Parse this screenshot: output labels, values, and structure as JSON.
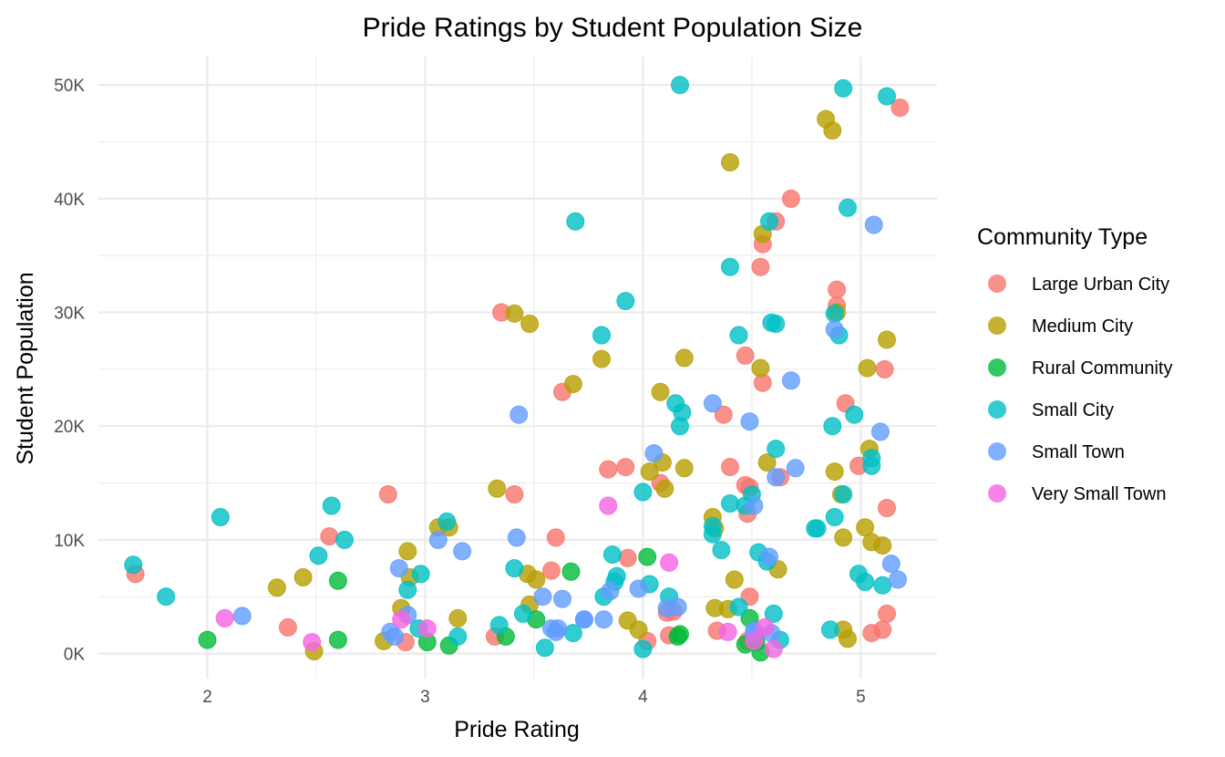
{
  "chart_data": {
    "type": "scatter",
    "title": "Pride Ratings by Student Population Size",
    "xlabel": "Pride Rating",
    "ylabel": "Student Population",
    "xlim": [
      1.5,
      5.35
    ],
    "ylim": [
      -2200,
      52500
    ],
    "x_ticks": [
      2,
      3,
      4,
      5
    ],
    "x_tick_labels": [
      "2",
      "3",
      "4",
      "5"
    ],
    "y_ticks": [
      0,
      10000,
      20000,
      30000,
      40000,
      50000
    ],
    "y_tick_labels": [
      "0K",
      "10K",
      "20K",
      "30K",
      "40K",
      "50K"
    ],
    "grid": true,
    "legend": {
      "title": "Community Type",
      "position": "right"
    },
    "series": [
      {
        "name": "Large Urban City",
        "color": "#F8766D",
        "points": [
          [
            1.67,
            7000
          ],
          [
            2.56,
            10300
          ],
          [
            2.37,
            2300
          ],
          [
            2.83,
            14000
          ],
          [
            2.91,
            1000
          ],
          [
            3.35,
            30000
          ],
          [
            3.41,
            14000
          ],
          [
            3.6,
            10200
          ],
          [
            3.63,
            23000
          ],
          [
            3.84,
            16200
          ],
          [
            3.92,
            16400
          ],
          [
            3.93,
            8400
          ],
          [
            4.08,
            15000
          ],
          [
            4.12,
            1600
          ],
          [
            4.02,
            1100
          ],
          [
            4.37,
            21000
          ],
          [
            4.4,
            16400
          ],
          [
            4.55,
            36000
          ],
          [
            4.54,
            34000
          ],
          [
            4.55,
            23800
          ],
          [
            4.47,
            26200
          ],
          [
            4.47,
            14800
          ],
          [
            4.49,
            14600
          ],
          [
            4.63,
            15500
          ],
          [
            4.68,
            40000
          ],
          [
            4.61,
            38000
          ],
          [
            4.89,
            32000
          ],
          [
            4.89,
            30600
          ],
          [
            4.93,
            22000
          ],
          [
            4.99,
            16500
          ],
          [
            5.11,
            25000
          ],
          [
            5.12,
            12800
          ],
          [
            5.12,
            3500
          ],
          [
            5.1,
            2100
          ],
          [
            5.05,
            1800
          ],
          [
            4.11,
            3600
          ],
          [
            4.14,
            3700
          ],
          [
            4.34,
            2000
          ],
          [
            5.18,
            48000
          ],
          [
            4.48,
            12300
          ],
          [
            4.49,
            5000
          ],
          [
            3.32,
            1500
          ],
          [
            3.58,
            7300
          ],
          [
            4.48,
            1100
          ]
        ]
      },
      {
        "name": "Medium City",
        "color": "#B79F00",
        "points": [
          [
            2.32,
            5800
          ],
          [
            2.44,
            6700
          ],
          [
            2.49,
            200
          ],
          [
            2.81,
            1100
          ],
          [
            2.89,
            4000
          ],
          [
            2.92,
            9000
          ],
          [
            2.93,
            6700
          ],
          [
            3.11,
            11100
          ],
          [
            3.15,
            3100
          ],
          [
            3.33,
            14500
          ],
          [
            3.41,
            29900
          ],
          [
            3.48,
            29000
          ],
          [
            3.48,
            4300
          ],
          [
            3.47,
            7000
          ],
          [
            3.51,
            6500
          ],
          [
            3.68,
            23700
          ],
          [
            3.81,
            25900
          ],
          [
            3.93,
            2900
          ],
          [
            3.98,
            2100
          ],
          [
            4.03,
            16000
          ],
          [
            4.09,
            16800
          ],
          [
            4.08,
            23000
          ],
          [
            4.1,
            14500
          ],
          [
            4.19,
            26000
          ],
          [
            4.19,
            16300
          ],
          [
            4.32,
            12000
          ],
          [
            4.33,
            11000
          ],
          [
            4.33,
            4000
          ],
          [
            4.39,
            3900
          ],
          [
            4.42,
            6500
          ],
          [
            4.4,
            43200
          ],
          [
            4.54,
            25100
          ],
          [
            4.55,
            36900
          ],
          [
            4.57,
            16800
          ],
          [
            4.62,
            7400
          ],
          [
            4.84,
            47000
          ],
          [
            4.87,
            46000
          ],
          [
            4.88,
            16000
          ],
          [
            4.89,
            30000
          ],
          [
            4.91,
            14000
          ],
          [
            4.92,
            10200
          ],
          [
            4.92,
            2100
          ],
          [
            4.94,
            1300
          ],
          [
            5.02,
            11100
          ],
          [
            5.03,
            25100
          ],
          [
            5.04,
            18000
          ],
          [
            5.05,
            9800
          ],
          [
            5.1,
            9500
          ],
          [
            5.12,
            27600
          ],
          [
            3.06,
            11100
          ]
        ]
      },
      {
        "name": "Rural Community",
        "color": "#00BA38",
        "points": [
          [
            2.0,
            1200
          ],
          [
            2.6,
            6400
          ],
          [
            2.6,
            1200
          ],
          [
            3.01,
            1000
          ],
          [
            3.11,
            700
          ],
          [
            3.37,
            1500
          ],
          [
            3.51,
            3000
          ],
          [
            3.67,
            7200
          ],
          [
            4.02,
            8500
          ],
          [
            4.17,
            1700
          ],
          [
            4.16,
            1500
          ],
          [
            4.47,
            800
          ],
          [
            4.49,
            3100
          ],
          [
            4.54,
            100
          ],
          [
            4.52,
            1000
          ]
        ]
      },
      {
        "name": "Small City",
        "color": "#00BFC4",
        "points": [
          [
            1.66,
            7800
          ],
          [
            1.81,
            5000
          ],
          [
            2.06,
            12000
          ],
          [
            2.57,
            13000
          ],
          [
            2.63,
            10000
          ],
          [
            2.51,
            8600
          ],
          [
            2.92,
            5600
          ],
          [
            2.97,
            2200
          ],
          [
            2.98,
            7000
          ],
          [
            3.1,
            11600
          ],
          [
            3.15,
            1500
          ],
          [
            3.34,
            2500
          ],
          [
            3.45,
            3500
          ],
          [
            3.41,
            7500
          ],
          [
            3.55,
            500
          ],
          [
            3.68,
            1800
          ],
          [
            3.69,
            38000
          ],
          [
            3.81,
            28000
          ],
          [
            3.82,
            5000
          ],
          [
            3.88,
            6800
          ],
          [
            3.92,
            31000
          ],
          [
            3.87,
            6300
          ],
          [
            4.0,
            14200
          ],
          [
            4.03,
            6100
          ],
          [
            4.0,
            400
          ],
          [
            4.12,
            5000
          ],
          [
            4.15,
            22000
          ],
          [
            4.17,
            20000
          ],
          [
            4.18,
            21200
          ],
          [
            4.32,
            10500
          ],
          [
            4.32,
            11200
          ],
          [
            4.36,
            9100
          ],
          [
            4.4,
            34000
          ],
          [
            4.4,
            13200
          ],
          [
            4.44,
            28000
          ],
          [
            4.44,
            4100
          ],
          [
            4.5,
            14000
          ],
          [
            4.47,
            13000
          ],
          [
            4.53,
            8900
          ],
          [
            4.57,
            8100
          ],
          [
            4.59,
            29100
          ],
          [
            4.61,
            29000
          ],
          [
            4.58,
            38000
          ],
          [
            4.61,
            18000
          ],
          [
            4.6,
            3500
          ],
          [
            4.63,
            1200
          ],
          [
            4.79,
            11000
          ],
          [
            4.8,
            11000
          ],
          [
            4.88,
            12000
          ],
          [
            4.88,
            29900
          ],
          [
            4.9,
            28000
          ],
          [
            4.92,
            14000
          ],
          [
            4.94,
            39200
          ],
          [
            4.87,
            20000
          ],
          [
            4.97,
            21000
          ],
          [
            4.99,
            7000
          ],
          [
            5.02,
            6300
          ],
          [
            5.05,
            16500
          ],
          [
            5.05,
            17200
          ],
          [
            5.1,
            6000
          ],
          [
            5.12,
            49000
          ],
          [
            4.92,
            49700
          ],
          [
            4.17,
            50000
          ],
          [
            4.86,
            2100
          ],
          [
            3.86,
            8700
          ]
        ]
      },
      {
        "name": "Small Town",
        "color": "#619CFF",
        "points": [
          [
            2.16,
            3300
          ],
          [
            2.84,
            1900
          ],
          [
            2.86,
            1500
          ],
          [
            2.88,
            7500
          ],
          [
            2.92,
            3400
          ],
          [
            3.06,
            10000
          ],
          [
            3.17,
            9000
          ],
          [
            3.43,
            21000
          ],
          [
            3.42,
            10200
          ],
          [
            3.54,
            5000
          ],
          [
            3.58,
            2200
          ],
          [
            3.61,
            2200
          ],
          [
            3.63,
            4800
          ],
          [
            3.73,
            3000
          ],
          [
            3.82,
            3000
          ],
          [
            3.85,
            5500
          ],
          [
            4.05,
            17600
          ],
          [
            3.98,
            5700
          ],
          [
            4.11,
            4000
          ],
          [
            4.16,
            4100
          ],
          [
            4.32,
            22000
          ],
          [
            4.49,
            20400
          ],
          [
            4.51,
            13000
          ],
          [
            4.61,
            15500
          ],
          [
            4.58,
            8500
          ],
          [
            4.68,
            24000
          ],
          [
            4.7,
            16300
          ],
          [
            4.88,
            28500
          ],
          [
            5.06,
            37700
          ],
          [
            5.09,
            19500
          ],
          [
            5.14,
            7900
          ],
          [
            5.17,
            6500
          ],
          [
            3.6,
            1900
          ],
          [
            3.73,
            3000
          ],
          [
            4.51,
            1800
          ],
          [
            4.59,
            1800
          ],
          [
            4.51,
            2000
          ]
        ]
      },
      {
        "name": "Very Small Town",
        "color": "#F564E3",
        "points": [
          [
            2.08,
            3100
          ],
          [
            2.48,
            1000
          ],
          [
            2.89,
            3000
          ],
          [
            3.01,
            2200
          ],
          [
            3.84,
            13000
          ],
          [
            4.12,
            8000
          ],
          [
            4.39,
            1900
          ],
          [
            4.56,
            2300
          ],
          [
            4.6,
            400
          ],
          [
            4.51,
            1100
          ]
        ]
      }
    ]
  }
}
